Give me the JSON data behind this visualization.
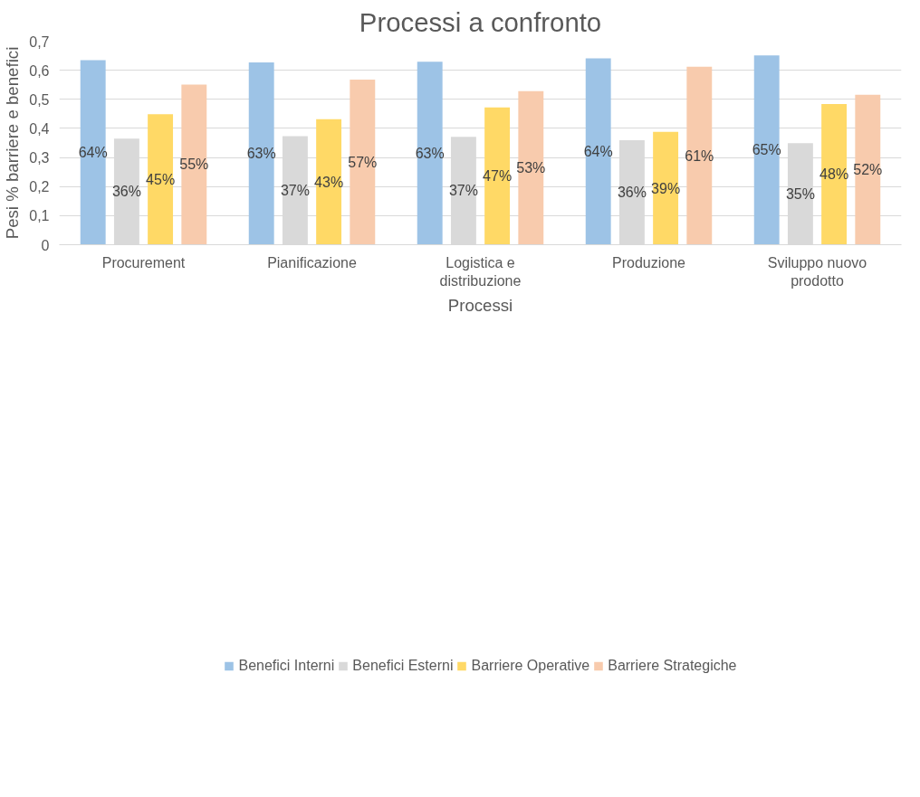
{
  "chart_data": {
    "type": "bar",
    "title": "Processi a confronto",
    "xlabel": "Processi",
    "ylabel": "Pesi % barriere e benefici",
    "categories": [
      "Procurement",
      "Pianificazione",
      "Logistica e distribuzione",
      "Produzione",
      "Sviluppo nuovo prodotto"
    ],
    "series": [
      {
        "name": "Benefici Interni",
        "color": "#9dc3e6",
        "values": [
          0.635,
          0.627,
          0.629,
          0.641,
          0.651
        ],
        "value_labels": [
          "64%",
          "63%",
          "63%",
          "64%",
          "65%"
        ]
      },
      {
        "name": "Benefici Esterni",
        "color": "#d9d9d9",
        "values": [
          0.365,
          0.373,
          0.371,
          0.359,
          0.349
        ],
        "value_labels": [
          "36%",
          "37%",
          "37%",
          "36%",
          "35%"
        ]
      },
      {
        "name": "Barriere Operative",
        "color": "#ffd966",
        "values": [
          0.449,
          0.432,
          0.472,
          0.388,
          0.484
        ],
        "value_labels": [
          "45%",
          "43%",
          "47%",
          "39%",
          "48%"
        ]
      },
      {
        "name": "Barriere Strategiche",
        "color": "#f8cbad",
        "values": [
          0.551,
          0.568,
          0.528,
          0.612,
          0.516
        ],
        "value_labels": [
          "55%",
          "57%",
          "53%",
          "61%",
          "52%"
        ]
      }
    ],
    "ylim": [
      0,
      0.7
    ],
    "yticks": [
      0,
      {
        "value": 0.1,
        "label": "0,1"
      },
      {
        "value": 0.2,
        "label": "0,2"
      },
      {
        "value": 0.3,
        "label": "0,3"
      },
      {
        "value": 0.4,
        "label": "0,4"
      },
      {
        "value": 0.5,
        "label": "0,5"
      },
      {
        "value": 0.6,
        "label": "0,6"
      },
      {
        "value": 0.7,
        "label": "0,7"
      }
    ],
    "grid": "y",
    "legend": "bottom"
  }
}
